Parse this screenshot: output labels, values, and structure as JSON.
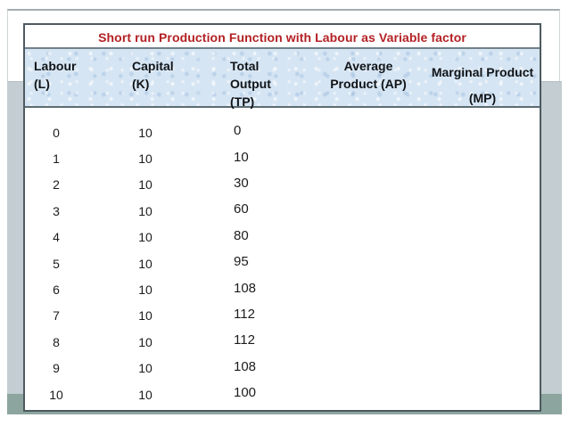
{
  "colors": {
    "title_red": "#b32125",
    "header_blue": "#d6e5f3",
    "table_border": "#4d5a60",
    "bg_gray": "#c3cdd2",
    "bg_sage": "#8da59f"
  },
  "table": {
    "title": "Short run Production Function with Labour as Variable factor",
    "headers": {
      "labour": [
        "Labour",
        "(L)"
      ],
      "capital": [
        "Capital",
        "(K)"
      ],
      "total": [
        "Total",
        "Output",
        "(TP)"
      ],
      "average": [
        "Average",
        "Product (AP)"
      ],
      "marginal": [
        "Marginal Product",
        "(MP)"
      ]
    },
    "rows": [
      {
        "l": "0",
        "k": "10",
        "tp": "0",
        "ap": "",
        "mp": ""
      },
      {
        "l": "1",
        "k": "10",
        "tp": "10",
        "ap": "",
        "mp": ""
      },
      {
        "l": "2",
        "k": "10",
        "tp": "30",
        "ap": "",
        "mp": ""
      },
      {
        "l": "3",
        "k": "10",
        "tp": "60",
        "ap": "",
        "mp": ""
      },
      {
        "l": "4",
        "k": "10",
        "tp": "80",
        "ap": "",
        "mp": ""
      },
      {
        "l": "5",
        "k": "10",
        "tp": "95",
        "ap": "",
        "mp": ""
      },
      {
        "l": "6",
        "k": "10",
        "tp": "108",
        "ap": "",
        "mp": ""
      },
      {
        "l": "7",
        "k": "10",
        "tp": "112",
        "ap": "",
        "mp": ""
      },
      {
        "l": "8",
        "k": "10",
        "tp": "112",
        "ap": "",
        "mp": ""
      },
      {
        "l": "9",
        "k": "10",
        "tp": "108",
        "ap": "",
        "mp": ""
      },
      {
        "l": "10",
        "k": "10",
        "tp": "100",
        "ap": "",
        "mp": ""
      }
    ]
  }
}
